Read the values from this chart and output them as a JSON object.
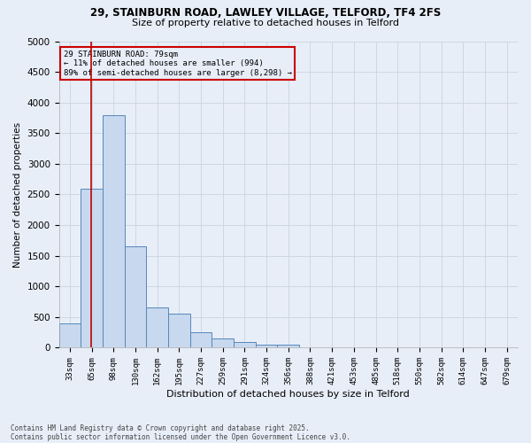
{
  "title1": "29, STAINBURN ROAD, LAWLEY VILLAGE, TELFORD, TF4 2FS",
  "title2": "Size of property relative to detached houses in Telford",
  "xlabel": "Distribution of detached houses by size in Telford",
  "ylabel": "Number of detached properties",
  "categories": [
    "33sqm",
    "65sqm",
    "98sqm",
    "130sqm",
    "162sqm",
    "195sqm",
    "227sqm",
    "259sqm",
    "291sqm",
    "324sqm",
    "356sqm",
    "388sqm",
    "421sqm",
    "453sqm",
    "485sqm",
    "518sqm",
    "550sqm",
    "582sqm",
    "614sqm",
    "647sqm",
    "679sqm"
  ],
  "values": [
    400,
    2600,
    3800,
    1650,
    650,
    550,
    250,
    150,
    100,
    50,
    50,
    0,
    0,
    0,
    0,
    0,
    0,
    0,
    0,
    0,
    0
  ],
  "bar_color": "#c8d8ee",
  "bar_edge_color": "#5588bb",
  "grid_color": "#c8d4e0",
  "background_color": "#e8eef8",
  "vline_x_index": 0.98,
  "vline_color": "#bb0000",
  "annotation_line1": "29 STAINBURN ROAD: 79sqm",
  "annotation_line2": "← 11% of detached houses are smaller (994)",
  "annotation_line3": "89% of semi-detached houses are larger (8,298) →",
  "annotation_box_color": "#cc0000",
  "footer1": "Contains HM Land Registry data © Crown copyright and database right 2025.",
  "footer2": "Contains public sector information licensed under the Open Government Licence v3.0.",
  "ylim": [
    0,
    5000
  ],
  "yticks": [
    0,
    500,
    1000,
    1500,
    2000,
    2500,
    3000,
    3500,
    4000,
    4500,
    5000
  ]
}
